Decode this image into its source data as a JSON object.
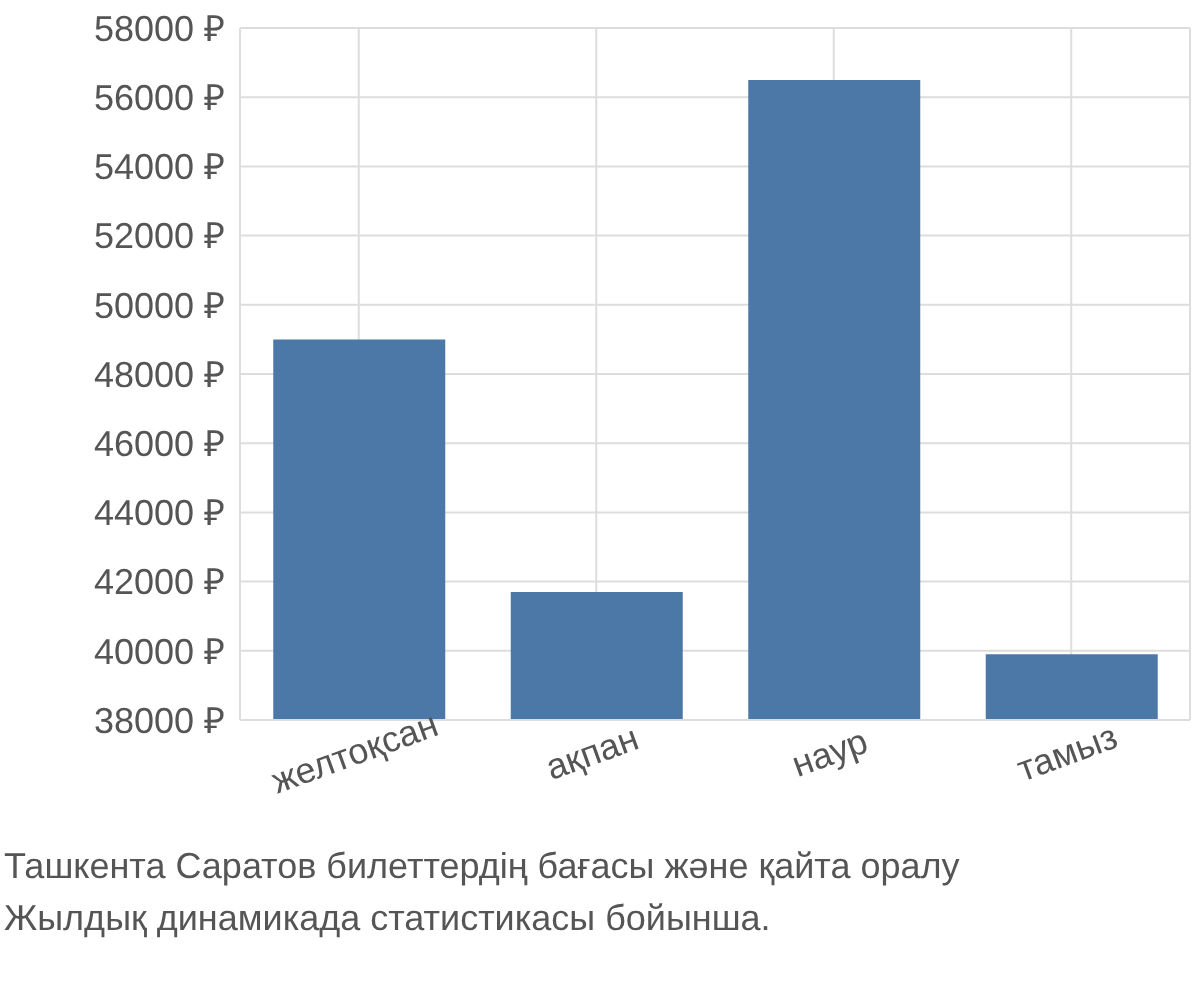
{
  "chart_data": {
    "type": "bar",
    "categories": [
      "желтоқсан",
      "ақпан",
      "наур",
      "тамыз"
    ],
    "values": [
      49000,
      41700,
      56500,
      39900
    ],
    "color": "#4c78a8",
    "ylim": [
      38000,
      58000
    ],
    "yticks": [
      {
        "value": 38000,
        "label": "38000 ₽"
      },
      {
        "value": 40000,
        "label": "40000 ₽"
      },
      {
        "value": 42000,
        "label": "42000 ₽"
      },
      {
        "value": 44000,
        "label": "44000 ₽"
      },
      {
        "value": 46000,
        "label": "46000 ₽"
      },
      {
        "value": 48000,
        "label": "48000 ₽"
      },
      {
        "value": 50000,
        "label": "50000 ₽"
      },
      {
        "value": 52000,
        "label": "52000 ₽"
      },
      {
        "value": 54000,
        "label": "54000 ₽"
      },
      {
        "value": 56000,
        "label": "56000 ₽"
      },
      {
        "value": 58000,
        "label": "58000 ₽"
      }
    ],
    "grid": true,
    "annotations": [
      "Ташкента Саратов билеттердің бағасы және қайта оралу",
      "Жылдық динамикада статистикасы бойынша."
    ]
  }
}
